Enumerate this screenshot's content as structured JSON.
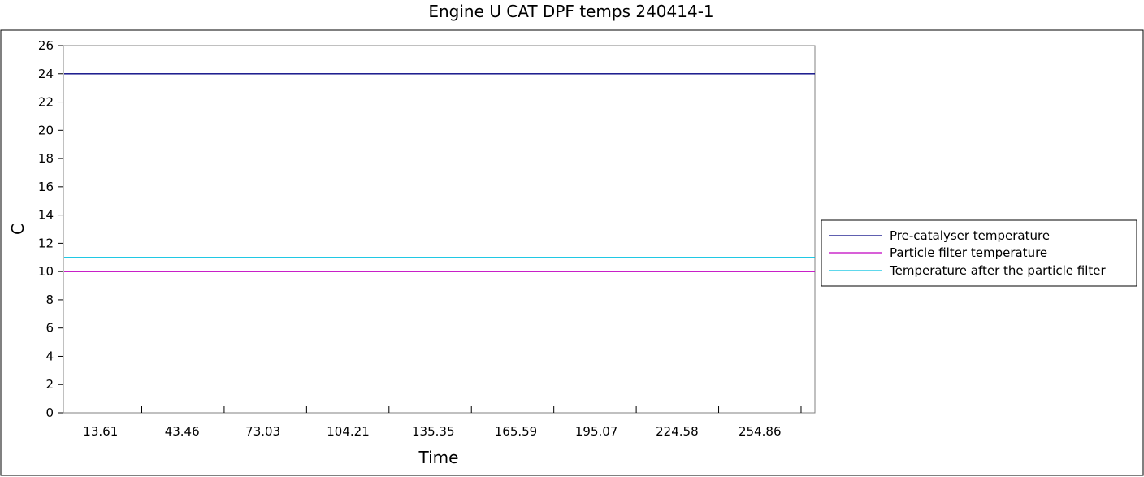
{
  "chart_data": {
    "type": "line",
    "title": "Engine U   CAT DPF temps 240414-1",
    "xlabel": "Time",
    "ylabel": "C",
    "x_tick_labels": [
      "13.61",
      "43.46",
      "73.03",
      "104.21",
      "135.35",
      "165.59",
      "195.07",
      "224.58",
      "254.86"
    ],
    "x": [
      13.61,
      43.46,
      73.03,
      104.21,
      135.35,
      165.59,
      195.07,
      224.58,
      254.86
    ],
    "xlim": [
      0,
      275
    ],
    "ylim": [
      0,
      26
    ],
    "y_ticks": [
      0,
      2,
      4,
      6,
      8,
      10,
      12,
      14,
      16,
      18,
      20,
      22,
      24,
      26
    ],
    "grid": false,
    "legend_position": "right",
    "series": [
      {
        "name": "Pre-catalyser temperature",
        "color": "#000080",
        "values": [
          24,
          24,
          24,
          24,
          24,
          24,
          24,
          24,
          24
        ]
      },
      {
        "name": "Particle filter temperature",
        "color": "#c000c0",
        "values": [
          10,
          10,
          10,
          10,
          10,
          10,
          10,
          10,
          10
        ]
      },
      {
        "name": "Temperature after the particle filter",
        "color": "#00c0e0",
        "values": [
          11,
          11,
          11,
          11,
          11,
          11,
          11,
          11,
          11
        ]
      }
    ]
  }
}
